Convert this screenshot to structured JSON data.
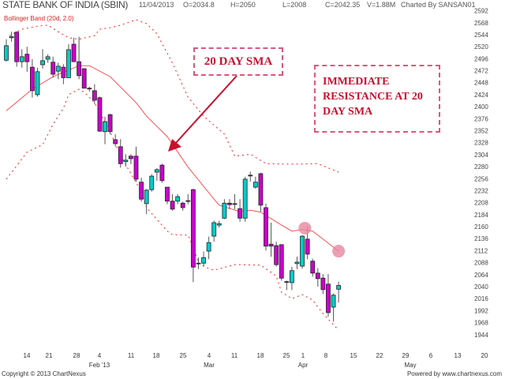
{
  "header": {
    "title": "STATE BANK OF INDIA (SBIN)",
    "date": "11/04/2013",
    "open": "O=2034.8",
    "high": "H=2050",
    "low": "L=2008",
    "close": "C=2042.35",
    "volume": "V=1.88M",
    "charted_by": "Charted By SANSAN01"
  },
  "indicator_label": "Bollinger Band (20d, 2.0)",
  "annotations": {
    "sma_label": "20 DAY SMA",
    "resistance_label": "IMMEDIATE RESISTANCE AT 20 DAY SMA"
  },
  "footer": {
    "copyright": "Copyright © 2013 ChartNexus",
    "powered": "Powered by www.chartnexus.com"
  },
  "colors": {
    "up": "#00cccc",
    "down": "#cc00cc",
    "band": "#ff4040",
    "sma": "#ff5050",
    "annotation": "#c8102e",
    "highlight": "#e8879f"
  },
  "chart_data": {
    "type": "candlestick",
    "ylim": [
      1944,
      2592
    ],
    "yticks": [
      2592,
      2568,
      2544,
      2520,
      2496,
      2472,
      2448,
      2424,
      2400,
      2376,
      2352,
      2328,
      2304,
      2280,
      2256,
      2232,
      2208,
      2184,
      2160,
      2136,
      2112,
      2088,
      2064,
      2040,
      2016,
      1992,
      1968,
      1944
    ],
    "xticks": [
      "14",
      "21",
      "28",
      "4",
      "11",
      "18",
      "25",
      "4",
      "11",
      "18",
      "25",
      "1",
      "8",
      "15",
      "22",
      "29",
      "6",
      "13",
      "20"
    ],
    "months": [
      "Feb '13",
      "Mar",
      "Apr",
      "May"
    ],
    "candles": [
      {
        "o": 2493,
        "h": 2535,
        "l": 2490,
        "c": 2522
      },
      {
        "o": 2538,
        "h": 2550,
        "l": 2530,
        "c": 2540
      },
      {
        "o": 2549,
        "h": 2551,
        "l": 2480,
        "c": 2490
      },
      {
        "o": 2490,
        "h": 2515,
        "l": 2478,
        "c": 2500
      },
      {
        "o": 2505,
        "h": 2520,
        "l": 2470,
        "c": 2490
      },
      {
        "o": 2479,
        "h": 2495,
        "l": 2418,
        "c": 2432
      },
      {
        "o": 2424,
        "h": 2478,
        "l": 2420,
        "c": 2470
      },
      {
        "o": 2484,
        "h": 2515,
        "l": 2476,
        "c": 2492
      },
      {
        "o": 2495,
        "h": 2505,
        "l": 2488,
        "c": 2500
      },
      {
        "o": 2489,
        "h": 2500,
        "l": 2458,
        "c": 2465
      },
      {
        "o": 2471,
        "h": 2488,
        "l": 2455,
        "c": 2481
      },
      {
        "o": 2479,
        "h": 2485,
        "l": 2445,
        "c": 2458
      },
      {
        "o": 2458,
        "h": 2525,
        "l": 2458,
        "c": 2514
      },
      {
        "o": 2525,
        "h": 2538,
        "l": 2490,
        "c": 2490
      },
      {
        "o": 2490,
        "h": 2540,
        "l": 2455,
        "c": 2462
      },
      {
        "o": 2476,
        "h": 2476,
        "l": 2437,
        "c": 2437
      },
      {
        "o": 2437,
        "h": 2440,
        "l": 2430,
        "c": 2436
      },
      {
        "o": 2432,
        "h": 2445,
        "l": 2405,
        "c": 2413
      },
      {
        "o": 2418,
        "h": 2420,
        "l": 2350,
        "c": 2351
      },
      {
        "o": 2350,
        "h": 2380,
        "l": 2325,
        "c": 2370
      },
      {
        "o": 2384,
        "h": 2386,
        "l": 2345,
        "c": 2350
      },
      {
        "o": 2334,
        "h": 2345,
        "l": 2320,
        "c": 2326
      },
      {
        "o": 2320,
        "h": 2335,
        "l": 2278,
        "c": 2286
      },
      {
        "o": 2290,
        "h": 2305,
        "l": 2280,
        "c": 2293
      },
      {
        "o": 2301,
        "h": 2305,
        "l": 2285,
        "c": 2296
      },
      {
        "o": 2301,
        "h": 2320,
        "l": 2250,
        "c": 2255
      },
      {
        "o": 2249,
        "h": 2258,
        "l": 2210,
        "c": 2215
      },
      {
        "o": 2206,
        "h": 2235,
        "l": 2185,
        "c": 2233
      },
      {
        "o": 2234,
        "h": 2265,
        "l": 2230,
        "c": 2261
      },
      {
        "o": 2269,
        "h": 2277,
        "l": 2252,
        "c": 2274
      },
      {
        "o": 2283,
        "h": 2286,
        "l": 2248,
        "c": 2252
      },
      {
        "o": 2239,
        "h": 2239,
        "l": 2205,
        "c": 2211
      },
      {
        "o": 2211,
        "h": 2225,
        "l": 2192,
        "c": 2195
      },
      {
        "o": 2211,
        "h": 2225,
        "l": 2205,
        "c": 2220
      },
      {
        "o": 2207,
        "h": 2210,
        "l": 2192,
        "c": 2198
      },
      {
        "o": 2212,
        "h": 2225,
        "l": 2205,
        "c": 2211
      },
      {
        "o": 2234,
        "h": 2236,
        "l": 2049,
        "c": 2079
      },
      {
        "o": 2087,
        "h": 2098,
        "l": 2075,
        "c": 2086
      },
      {
        "o": 2087,
        "h": 2110,
        "l": 2080,
        "c": 2098
      },
      {
        "o": 2111,
        "h": 2140,
        "l": 2095,
        "c": 2128
      },
      {
        "o": 2141,
        "h": 2172,
        "l": 2130,
        "c": 2168
      },
      {
        "o": 2163,
        "h": 2172,
        "l": 2158,
        "c": 2166
      },
      {
        "o": 2177,
        "h": 2215,
        "l": 2175,
        "c": 2207
      },
      {
        "o": 2207,
        "h": 2215,
        "l": 2195,
        "c": 2204
      },
      {
        "o": 2206,
        "h": 2225,
        "l": 2195,
        "c": 2205
      },
      {
        "o": 2196,
        "h": 2215,
        "l": 2170,
        "c": 2177
      },
      {
        "o": 2177,
        "h": 2260,
        "l": 2170,
        "c": 2255
      },
      {
        "o": 2263,
        "h": 2270,
        "l": 2250,
        "c": 2262
      },
      {
        "o": 2239,
        "h": 2260,
        "l": 2236,
        "c": 2249
      },
      {
        "o": 2266,
        "h": 2268,
        "l": 2190,
        "c": 2203
      },
      {
        "o": 2198,
        "h": 2206,
        "l": 2112,
        "c": 2121
      },
      {
        "o": 2125,
        "h": 2168,
        "l": 2100,
        "c": 2121
      },
      {
        "o": 2122,
        "h": 2130,
        "l": 2080,
        "c": 2084
      },
      {
        "o": 2124,
        "h": 2124,
        "l": 2052,
        "c": 2057
      },
      {
        "o": 2050,
        "h": 2052,
        "l": 2033,
        "c": 2049
      },
      {
        "o": 2048,
        "h": 2080,
        "l": 2033,
        "c": 2072
      },
      {
        "o": 2086,
        "h": 2100,
        "l": 2075,
        "c": 2089
      },
      {
        "o": 2081,
        "h": 2143,
        "l": 2076,
        "c": 2141
      },
      {
        "o": 2135,
        "h": 2160,
        "l": 2095,
        "c": 2105
      },
      {
        "o": 2091,
        "h": 2096,
        "l": 2060,
        "c": 2067
      },
      {
        "o": 2067,
        "h": 2077,
        "l": 2040,
        "c": 2056
      },
      {
        "o": 2057,
        "h": 2065,
        "l": 2025,
        "c": 2034
      },
      {
        "o": 2045,
        "h": 2065,
        "l": 1980,
        "c": 1988
      },
      {
        "o": 1999,
        "h": 2026,
        "l": 1970,
        "c": 2023
      },
      {
        "o": 2034.8,
        "h": 2050,
        "l": 2008,
        "c": 2042.35
      }
    ],
    "sma20": [
      [
        0,
        2392
      ],
      [
        5,
        2435
      ],
      [
        9,
        2460
      ],
      [
        14,
        2482
      ],
      [
        16,
        2482
      ],
      [
        20,
        2460
      ],
      [
        25,
        2408
      ],
      [
        27,
        2381
      ],
      [
        31,
        2340
      ],
      [
        35,
        2279
      ],
      [
        40,
        2215
      ],
      [
        41,
        2203
      ],
      [
        45,
        2190
      ],
      [
        47,
        2193
      ],
      [
        49,
        2189
      ],
      [
        51,
        2176
      ],
      [
        53,
        2163
      ],
      [
        55,
        2151
      ],
      [
        57,
        2154
      ],
      [
        59,
        2151
      ],
      [
        61,
        2135
      ],
      [
        64,
        2111
      ]
    ],
    "bollinger_upper": [
      [
        0.6,
        2542
      ],
      [
        3,
        2555
      ],
      [
        6,
        2561
      ],
      [
        8,
        2563
      ],
      [
        10,
        2550
      ],
      [
        12,
        2538
      ],
      [
        14,
        2535
      ],
      [
        17,
        2542
      ],
      [
        18,
        2555
      ],
      [
        20,
        2558
      ],
      [
        22,
        2563
      ],
      [
        25,
        2574
      ],
      [
        27,
        2566
      ],
      [
        29,
        2546
      ],
      [
        32,
        2487
      ],
      [
        35,
        2419
      ],
      [
        38,
        2381
      ],
      [
        42,
        2345
      ],
      [
        44,
        2301
      ],
      [
        47,
        2305
      ],
      [
        50,
        2286
      ],
      [
        55,
        2285
      ],
      [
        60,
        2286
      ],
      [
        64,
        2269
      ]
    ],
    "bollinger_lower": [
      [
        0,
        2255
      ],
      [
        2,
        2282
      ],
      [
        4,
        2309
      ],
      [
        7,
        2324
      ],
      [
        9,
        2365
      ],
      [
        11,
        2397
      ],
      [
        12,
        2424
      ],
      [
        14,
        2435
      ],
      [
        15,
        2429
      ],
      [
        17,
        2408
      ],
      [
        18,
        2388
      ],
      [
        20,
        2350
      ],
      [
        22,
        2302
      ],
      [
        24,
        2266
      ],
      [
        26,
        2230
      ],
      [
        27,
        2198
      ],
      [
        31,
        2151
      ],
      [
        32,
        2144
      ],
      [
        35,
        2143
      ],
      [
        36,
        2119
      ],
      [
        37,
        2087
      ],
      [
        39,
        2076
      ],
      [
        40,
        2073
      ],
      [
        44,
        2084
      ],
      [
        49,
        2083
      ],
      [
        52,
        2061
      ],
      [
        53,
        2029
      ],
      [
        55,
        2016
      ],
      [
        57,
        2024
      ],
      [
        59,
        2013
      ],
      [
        61,
        1986
      ],
      [
        64,
        1953
      ]
    ],
    "highlights": [
      [
        57.5,
        2157
      ],
      [
        64,
        2111
      ]
    ]
  }
}
